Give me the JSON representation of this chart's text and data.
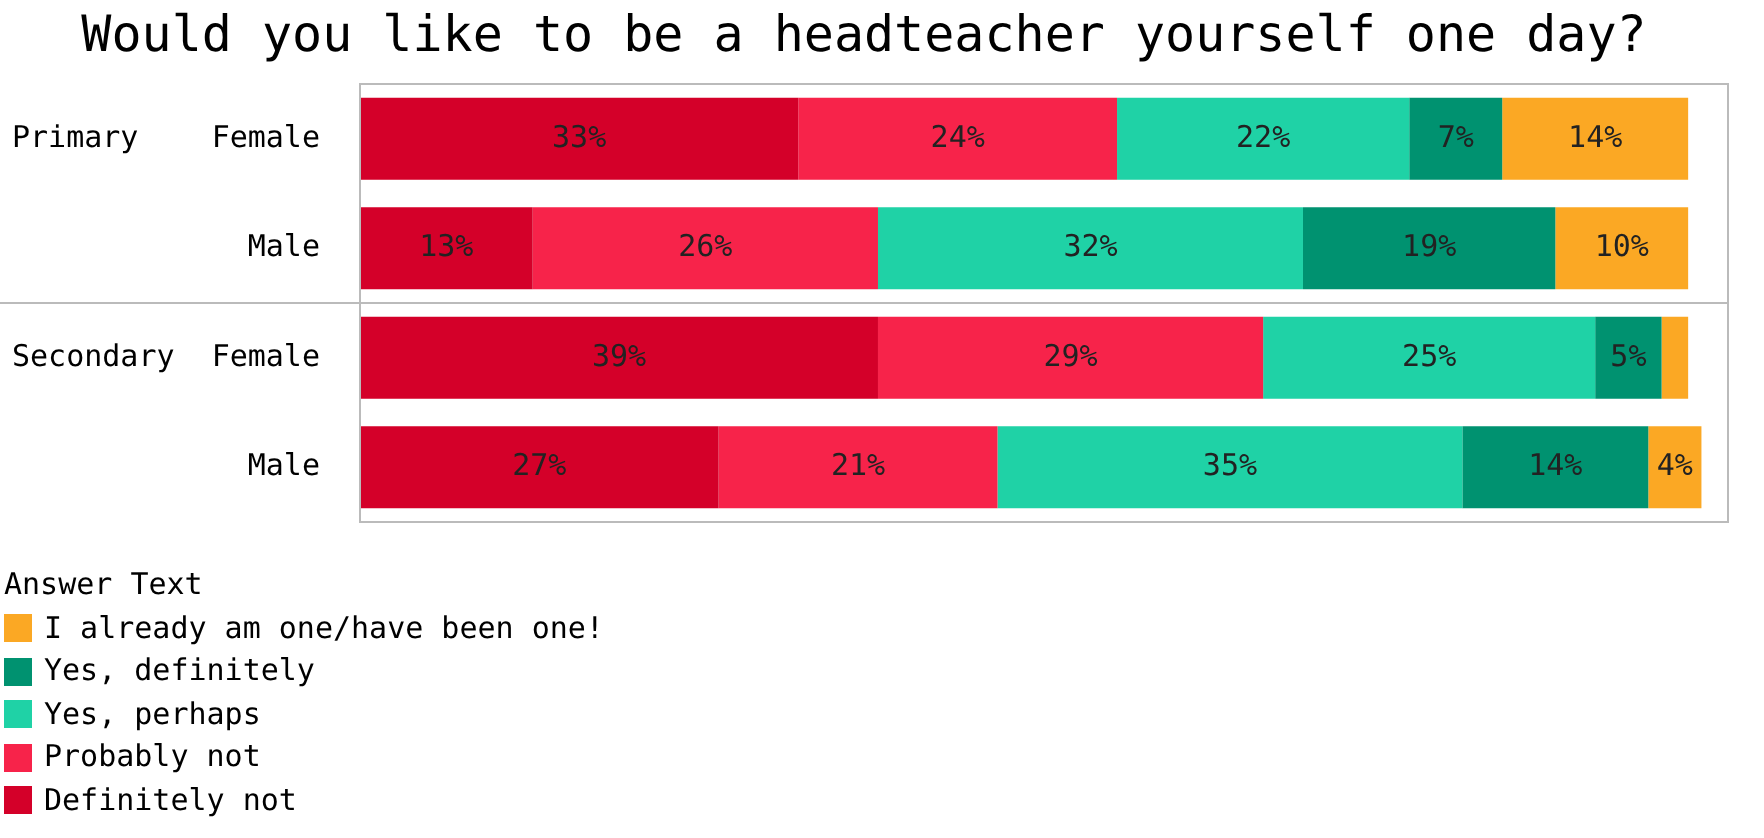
{
  "chart_data": {
    "type": "bar",
    "orientation": "horizontal",
    "stacked": true,
    "title": "Would you like to be a headteacher yourself one day?",
    "legend_title": "Answer Text",
    "legend": "bottom left",
    "tick_labels": "y",
    "xlim": [
      0,
      103
    ],
    "categories": [
      "Female",
      "Male",
      "Female",
      "Male"
    ],
    "annotations": [
      "Primary",
      "Secondary"
    ],
    "series": [
      {
        "name": "Definitely not",
        "color": "#d40029",
        "values": [
          33,
          13,
          39,
          27
        ],
        "value_labels": [
          "33%",
          "13%",
          "39%",
          "27%"
        ]
      },
      {
        "name": "Probably not",
        "color": "#f7234a",
        "values": [
          24,
          26,
          29,
          21
        ],
        "value_labels": [
          "24%",
          "26%",
          "29%",
          "21%"
        ]
      },
      {
        "name": "Yes, perhaps",
        "color": "#1fd2a6",
        "values": [
          22,
          32,
          25,
          35
        ],
        "value_labels": [
          "22%",
          "32%",
          "25%",
          "35%"
        ]
      },
      {
        "name": "Yes, definitely",
        "color": "#009270",
        "values": [
          7,
          19,
          5,
          14
        ],
        "value_labels": [
          "7%",
          "19%",
          "5%",
          "14%"
        ]
      },
      {
        "name": "I already am one/have been one!",
        "color": "#fba824",
        "values": [
          14,
          10,
          2,
          4
        ],
        "value_labels": [
          "14%",
          "10%",
          null,
          "4%"
        ]
      }
    ]
  }
}
